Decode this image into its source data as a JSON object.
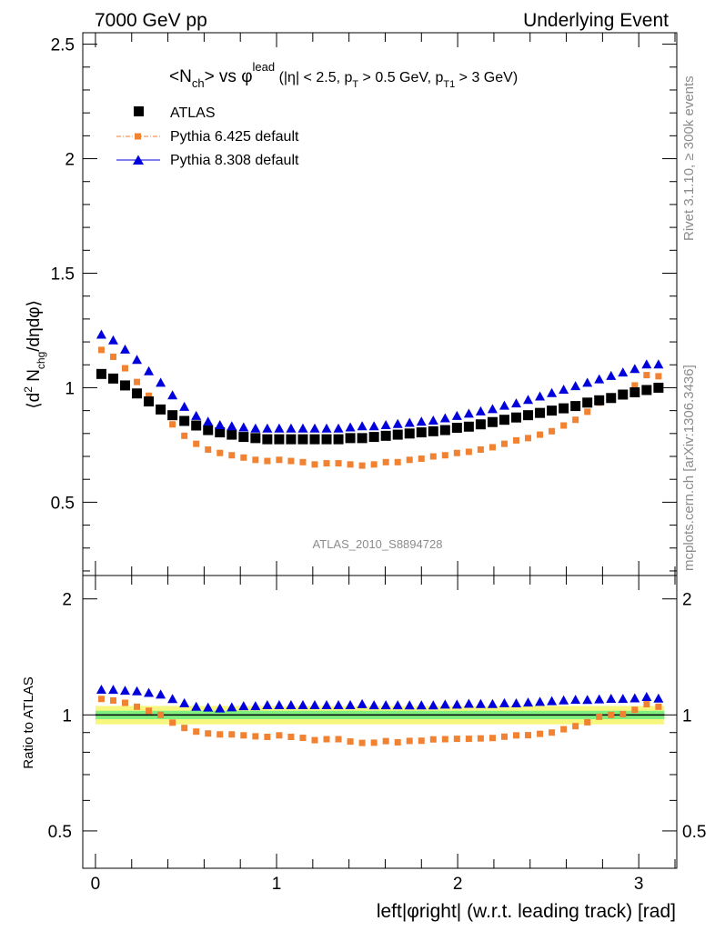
{
  "header": {
    "left": "7000 GeV pp",
    "right": "Underlying Event"
  },
  "side_text": {
    "rivet": "Rivet 3.1.10, ≥ 300k events",
    "mcplots": "mcplots.cern.ch [arXiv:1306.3436]"
  },
  "analysis_tag": "ATLAS_2010_S8894728",
  "colors": {
    "atlas": "#000000",
    "pythia6": "#f08232",
    "pythia8": "#0000dc",
    "band_inner": "#7fef7f",
    "band_outer": "#f7f77f"
  },
  "chart_data": [
    {
      "type": "scatter",
      "panel": "main",
      "title": "<N_ch> vs φ^lead (|η| < 2.5, p_T > 0.5 GeV, p_T1 > 3 GeV)",
      "title_parts": {
        "a": "<N",
        "a_sub": "ch",
        "b": "> vs φ",
        "b_sup": "lead",
        "c": " (|η| < 2.5, p",
        "c_sub": "T",
        "d": " > 0.5 GeV, p",
        "d_sub": "T1",
        "e": " > 3 GeV)"
      },
      "ylabel": "⟨d² N_chg/dηdφ⟩",
      "ylabel_parts": {
        "a": "⟨d",
        "a_sup": "2",
        "b": " N",
        "b_sub": "chg",
        "c": "/dηdφ⟩"
      },
      "xlim": [
        -0.07,
        3.21
      ],
      "ylim": [
        0.18,
        2.55
      ],
      "y_ticks": [
        0.5,
        1,
        1.5,
        2,
        2.5
      ],
      "y_tick_labels": [
        "0.5",
        "1",
        "1.5",
        "2",
        "2.5"
      ],
      "legend_position": "top-left",
      "legend": [
        "ATLAS",
        "Pythia 6.425 default",
        "Pythia 8.308 default"
      ],
      "x": [
        0.0327,
        0.0982,
        0.1636,
        0.2291,
        0.2945,
        0.36,
        0.4254,
        0.4909,
        0.5563,
        0.6218,
        0.6872,
        0.7527,
        0.8181,
        0.8836,
        0.949,
        1.0145,
        1.0799,
        1.1454,
        1.2108,
        1.2763,
        1.3417,
        1.4072,
        1.4726,
        1.5381,
        1.6035,
        1.669,
        1.7344,
        1.7999,
        1.8653,
        1.9308,
        1.9962,
        2.0617,
        2.1271,
        2.1926,
        2.258,
        2.3235,
        2.3889,
        2.4544,
        2.5198,
        2.5853,
        2.6507,
        2.7162,
        2.7816,
        2.8471,
        2.9125,
        2.978,
        3.0434,
        3.1089
      ],
      "series": [
        {
          "name": "ATLAS",
          "marker": "square",
          "values": [
            1.06,
            1.04,
            1.01,
            0.975,
            0.94,
            0.905,
            0.88,
            0.855,
            0.835,
            0.815,
            0.805,
            0.795,
            0.785,
            0.78,
            0.775,
            0.775,
            0.775,
            0.775,
            0.775,
            0.775,
            0.775,
            0.78,
            0.78,
            0.785,
            0.79,
            0.795,
            0.8,
            0.805,
            0.81,
            0.815,
            0.825,
            0.83,
            0.84,
            0.85,
            0.86,
            0.87,
            0.88,
            0.89,
            0.9,
            0.91,
            0.92,
            0.935,
            0.945,
            0.955,
            0.97,
            0.98,
            0.99,
            1.0
          ]
        },
        {
          "name": "Pythia 6.425 default",
          "marker": "square-small",
          "values": [
            1.165,
            1.135,
            1.085,
            1.025,
            0.965,
            0.905,
            0.84,
            0.79,
            0.755,
            0.73,
            0.715,
            0.705,
            0.695,
            0.685,
            0.68,
            0.685,
            0.68,
            0.675,
            0.665,
            0.67,
            0.67,
            0.665,
            0.66,
            0.665,
            0.675,
            0.675,
            0.685,
            0.69,
            0.7,
            0.705,
            0.715,
            0.72,
            0.73,
            0.74,
            0.755,
            0.77,
            0.78,
            0.795,
            0.81,
            0.835,
            0.86,
            0.895,
            0.935,
            0.955,
            0.975,
            1.01,
            1.055,
            1.05
          ]
        },
        {
          "name": "Pythia 8.308 default",
          "marker": "triangle",
          "values": [
            1.23,
            1.205,
            1.165,
            1.12,
            1.07,
            1.02,
            0.965,
            0.915,
            0.875,
            0.85,
            0.835,
            0.83,
            0.825,
            0.82,
            0.82,
            0.82,
            0.82,
            0.82,
            0.82,
            0.82,
            0.82,
            0.825,
            0.83,
            0.83,
            0.835,
            0.84,
            0.845,
            0.85,
            0.855,
            0.865,
            0.875,
            0.885,
            0.895,
            0.905,
            0.92,
            0.93,
            0.945,
            0.96,
            0.975,
            0.99,
            1.005,
            1.02,
            1.035,
            1.05,
            1.065,
            1.08,
            1.1,
            1.1
          ]
        }
      ]
    },
    {
      "type": "scatter",
      "panel": "ratio",
      "xlabel": "left|φright| (w.r.t. leading track) [rad]",
      "xlabel_parts": {
        "a": "left|",
        "b": "φ",
        "c": "right| (w.r.t. leading track) [rad]"
      },
      "ylabel": "Ratio to ATLAS",
      "xlim": [
        -0.07,
        3.21
      ],
      "ylim": [
        0.4,
        2.3
      ],
      "log_scale_y": true,
      "x_ticks": [
        0,
        1,
        2,
        3
      ],
      "x_tick_labels": [
        "0",
        "1",
        "2",
        "3"
      ],
      "y_ticks": [
        0.5,
        1,
        2
      ],
      "y_tick_labels": [
        "0.5",
        "1",
        "2"
      ],
      "band_inner": [
        0.975,
        1.025
      ],
      "band_outer": [
        0.945,
        1.055
      ],
      "series": [
        {
          "name": "Pythia 6.425 default",
          "values": [
            1.1,
            1.09,
            1.075,
            1.05,
            1.025,
            1.0,
            0.955,
            0.925,
            0.905,
            0.895,
            0.89,
            0.89,
            0.885,
            0.88,
            0.877,
            0.885,
            0.877,
            0.872,
            0.86,
            0.865,
            0.865,
            0.853,
            0.846,
            0.847,
            0.855,
            0.849,
            0.856,
            0.857,
            0.864,
            0.865,
            0.867,
            0.867,
            0.869,
            0.871,
            0.878,
            0.885,
            0.886,
            0.893,
            0.9,
            0.918,
            0.935,
            0.957,
            0.989,
            1.0,
            1.005,
            1.031,
            1.066,
            1.05
          ]
        },
        {
          "name": "Pythia 8.308 default",
          "values": [
            1.16,
            1.159,
            1.153,
            1.149,
            1.138,
            1.127,
            1.097,
            1.07,
            1.048,
            1.043,
            1.037,
            1.044,
            1.051,
            1.051,
            1.058,
            1.058,
            1.058,
            1.058,
            1.058,
            1.058,
            1.058,
            1.058,
            1.064,
            1.057,
            1.057,
            1.057,
            1.056,
            1.056,
            1.056,
            1.061,
            1.061,
            1.066,
            1.065,
            1.065,
            1.07,
            1.069,
            1.074,
            1.079,
            1.083,
            1.088,
            1.092,
            1.091,
            1.095,
            1.099,
            1.098,
            1.102,
            1.111,
            1.1
          ]
        }
      ]
    }
  ]
}
